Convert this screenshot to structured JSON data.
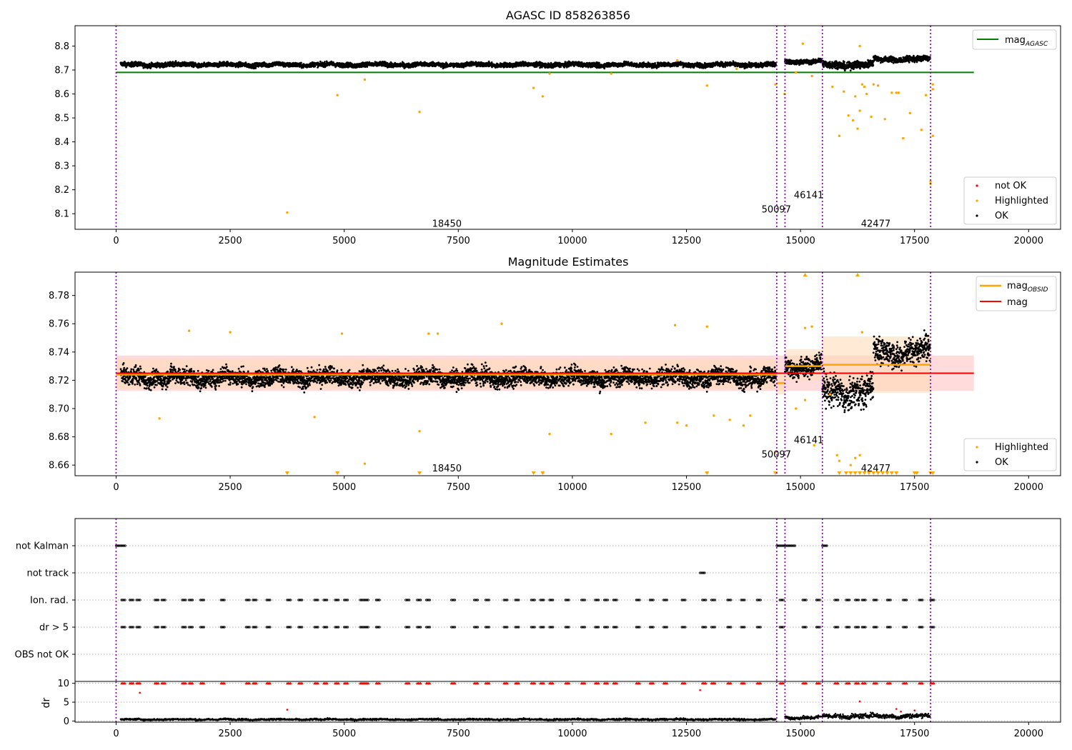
{
  "figure": {
    "title": "AGASC ID 858263856"
  },
  "colors": {
    "ok": "#000000",
    "highlighted": "#ffa500",
    "not_ok": "#ff0000",
    "agasc_line": "#008000",
    "mag_line": "#ff0000",
    "obsid_line": "#ffa500",
    "obsid_divider": "#8000a0",
    "band_mag": "#ffcccc",
    "band_obsid": "#ffd9b3"
  },
  "chart_data": [
    {
      "type": "scatter",
      "title": "AGASC ID 858263856",
      "xlabel": "",
      "ylabel": "",
      "xlim": [
        -900,
        20700
      ],
      "ylim": [
        8.035,
        8.885
      ],
      "x_ticks": [
        0,
        2500,
        5000,
        7500,
        10000,
        12500,
        15000,
        17500,
        20000
      ],
      "y_ticks": [
        8.1,
        8.2,
        8.3,
        8.4,
        8.5,
        8.6,
        8.7,
        8.8
      ],
      "grid": false,
      "legend_upper": {
        "position": "top-right",
        "entries": [
          {
            "label": "mag",
            "subscript": "AGASC",
            "color": "#008000"
          }
        ]
      },
      "legend_lower": {
        "position": "bottom-right",
        "entries": [
          {
            "label": "not OK",
            "color": "#ff0000"
          },
          {
            "label": "Highlighted",
            "color": "#ffa500"
          },
          {
            "label": "OK",
            "color": "#000000"
          }
        ]
      },
      "reference_line": {
        "name": "mag_AGASC",
        "value": 8.69,
        "x_range": [
          0,
          18800
        ]
      },
      "obsid_boundaries": [
        0,
        14480,
        14660,
        15480,
        17850
      ],
      "obsid_labels": [
        {
          "text": "18450",
          "x": 7250,
          "y": 8.06
        },
        {
          "text": "50097",
          "x": 14470,
          "y": 8.12
        },
        {
          "text": "46141",
          "x": 15180,
          "y": 8.18
        },
        {
          "text": "42477",
          "x": 16650,
          "y": 8.06
        }
      ],
      "ok_trend": [
        {
          "x_start": 100,
          "x_end": 14460,
          "level": 8.722,
          "spread": 0.012
        },
        {
          "x_start": 14660,
          "x_end": 15460,
          "level": 8.735,
          "spread": 0.012
        },
        {
          "x_start": 15480,
          "x_end": 16600,
          "level": 8.722,
          "spread": 0.02
        },
        {
          "x_start": 16600,
          "x_end": 17840,
          "level": 8.745,
          "spread": 0.015
        }
      ],
      "highlighted_points": [
        [
          3750,
          8.105
        ],
        [
          4850,
          8.595
        ],
        [
          5450,
          8.66
        ],
        [
          6650,
          8.525
        ],
        [
          9150,
          8.625
        ],
        [
          9350,
          8.59
        ],
        [
          9500,
          8.685
        ],
        [
          10850,
          8.685
        ],
        [
          12950,
          8.635
        ],
        [
          14450,
          8.64
        ],
        [
          14650,
          8.6
        ],
        [
          15050,
          8.81
        ],
        [
          15250,
          8.675
        ],
        [
          15850,
          8.425
        ],
        [
          16050,
          8.51
        ],
        [
          16150,
          8.49
        ],
        [
          16250,
          8.455
        ],
        [
          16300,
          8.53
        ],
        [
          16350,
          8.64
        ],
        [
          16450,
          8.6
        ],
        [
          16550,
          8.505
        ],
        [
          16700,
          8.635
        ],
        [
          16850,
          8.495
        ],
        [
          17000,
          8.605
        ],
        [
          17100,
          8.605
        ],
        [
          17150,
          8.605
        ],
        [
          17250,
          8.415
        ],
        [
          17400,
          8.52
        ],
        [
          17650,
          8.45
        ],
        [
          17750,
          8.595
        ],
        [
          17850,
          8.235
        ],
        [
          17850,
          8.225
        ],
        [
          17900,
          8.425
        ],
        [
          17900,
          8.62
        ],
        [
          17900,
          8.64
        ],
        [
          16300,
          8.8
        ],
        [
          16200,
          8.59
        ],
        [
          16400,
          8.63
        ],
        [
          16600,
          8.64
        ],
        [
          15950,
          8.61
        ],
        [
          15700,
          8.63
        ],
        [
          14900,
          8.69
        ],
        [
          13600,
          8.705
        ],
        [
          12300,
          8.74
        ]
      ]
    },
    {
      "type": "scatter",
      "title": "Magnitude Estimates",
      "xlabel": "",
      "ylabel": "",
      "xlim": [
        -900,
        20700
      ],
      "ylim": [
        8.6525,
        8.7965
      ],
      "x_ticks": [
        0,
        2500,
        5000,
        7500,
        10000,
        12500,
        15000,
        17500,
        20000
      ],
      "y_ticks": [
        8.66,
        8.68,
        8.7,
        8.72,
        8.74,
        8.76,
        8.78
      ],
      "grid": false,
      "legend_upper": {
        "position": "top-right",
        "entries": [
          {
            "label": "mag",
            "subscript": "OBSID",
            "color": "#ffa500"
          },
          {
            "label": "mag",
            "color": "#ff0000"
          }
        ]
      },
      "legend_lower": {
        "position": "bottom-right",
        "entries": [
          {
            "label": "Highlighted",
            "color": "#ffa500"
          },
          {
            "label": "OK",
            "color": "#000000"
          }
        ]
      },
      "mag": {
        "value": 8.725,
        "band": [
          8.7125,
          8.7375
        ],
        "x_range": [
          0,
          18800
        ]
      },
      "mag_obsid": [
        {
          "x_start": 0,
          "x_end": 14480,
          "value": 8.724,
          "band": [
            8.714,
            8.735
          ]
        },
        {
          "x_start": 14480,
          "x_end": 14660,
          "value": 8.718,
          "band": [
            8.71,
            8.726
          ]
        },
        {
          "x_start": 14660,
          "x_end": 15480,
          "value": 8.73,
          "band": [
            8.72,
            8.742
          ]
        },
        {
          "x_start": 15480,
          "x_end": 17850,
          "value": 8.731,
          "band": [
            8.711,
            8.751
          ]
        }
      ],
      "obsid_boundaries": [
        0,
        14480,
        14660,
        15480,
        17850
      ],
      "obsid_labels": [
        {
          "text": "18450",
          "x": 7250,
          "y": 8.658
        },
        {
          "text": "50097",
          "x": 14470,
          "y": 8.668
        },
        {
          "text": "46141",
          "x": 15180,
          "y": 8.678
        },
        {
          "text": "42477",
          "x": 16650,
          "y": 8.658
        }
      ],
      "ok_trend": [
        {
          "x_start": 100,
          "x_end": 14460,
          "level": 8.722,
          "spread": 0.008
        },
        {
          "x_start": 14660,
          "x_end": 15460,
          "level": 8.73,
          "spread": 0.009
        },
        {
          "x_start": 15480,
          "x_end": 16600,
          "level": 8.712,
          "spread": 0.014
        },
        {
          "x_start": 16600,
          "x_end": 17840,
          "level": 8.74,
          "spread": 0.012
        }
      ],
      "highlighted_points": [
        [
          950,
          8.693
        ],
        [
          4350,
          8.694
        ],
        [
          5450,
          8.661
        ],
        [
          6650,
          8.684
        ],
        [
          9500,
          8.682
        ],
        [
          10850,
          8.682
        ],
        [
          11600,
          8.69
        ],
        [
          12300,
          8.69
        ],
        [
          12500,
          8.688
        ],
        [
          13100,
          8.695
        ],
        [
          13450,
          8.692
        ],
        [
          13750,
          8.688
        ],
        [
          13900,
          8.695
        ],
        [
          14450,
          8.669
        ],
        [
          14900,
          8.7
        ],
        [
          15100,
          8.706
        ],
        [
          15300,
          8.674
        ],
        [
          15650,
          8.71
        ],
        [
          15800,
          8.667
        ],
        [
          15850,
          8.663
        ],
        [
          16100,
          8.66
        ],
        [
          16200,
          8.665
        ],
        [
          16300,
          8.667
        ],
        [
          8450,
          8.76
        ],
        [
          12250,
          8.759
        ],
        [
          12950,
          8.758
        ],
        [
          15100,
          8.757
        ],
        [
          15250,
          8.758
        ],
        [
          16350,
          8.754
        ],
        [
          6850,
          8.753
        ],
        [
          4950,
          8.753
        ],
        [
          2500,
          8.754
        ],
        [
          1600,
          8.755
        ],
        [
          7050,
          8.753
        ]
      ],
      "off_scale_low_x": [
        3750,
        4850,
        6650,
        9150,
        9350,
        12950,
        14450,
        15850,
        16000,
        16100,
        16200,
        16300,
        16400,
        16500,
        16600,
        16700,
        16800,
        16900,
        17000,
        17100,
        17500,
        17550,
        17850,
        17900
      ],
      "off_scale_high_x": [
        15100,
        16250
      ]
    },
    {
      "type": "scatter",
      "title": "",
      "xlabel": "",
      "ylabel": "",
      "xlim": [
        -900,
        20700
      ],
      "categories": [
        "not Kalman",
        "not track",
        "Ion. rad.",
        "dr > 5",
        "OBS not OK"
      ],
      "flags": {
        "not Kalman": [
          [
            0,
            200
          ],
          [
            14480,
            14900
          ],
          [
            15480,
            15600
          ]
        ],
        "not track": [
          [
            12800,
            12900
          ]
        ],
        "Ion. rad.": [
          120,
          300,
          450,
          850,
          1000,
          1450,
          1600,
          1850,
          2300,
          2850,
          3000,
          3300,
          3750,
          4000,
          4350,
          4550,
          4800,
          5000,
          5350,
          5450,
          5700,
          6350,
          6600,
          6800,
          7350,
          7850,
          8100,
          8500,
          8750,
          9100,
          9300,
          9500,
          9850,
          10200,
          10500,
          10700,
          10900,
          11400,
          11700,
          12000,
          12400,
          12850,
          13050,
          13400,
          13700,
          14050,
          14550,
          15050,
          15350,
          15750,
          16000,
          16200,
          16350,
          16600,
          16900,
          17250,
          17600,
          17850
        ],
        "dr > 5": [
          120,
          300,
          450,
          850,
          1000,
          1450,
          1600,
          1850,
          2300,
          2850,
          3000,
          3300,
          3750,
          4000,
          4350,
          4550,
          4800,
          5000,
          5350,
          5450,
          5700,
          6350,
          6600,
          6800,
          7350,
          7850,
          8100,
          8500,
          8750,
          9100,
          9300,
          9500,
          9850,
          10200,
          10500,
          10700,
          10900,
          11400,
          11700,
          12000,
          12400,
          12850,
          13050,
          13400,
          13700,
          14050,
          14550,
          15050,
          15350,
          15750,
          16000,
          16200,
          16350,
          16600,
          16900,
          17250,
          17600,
          17850
        ],
        "OBS not OK": []
      },
      "obsid_boundaries": [
        0,
        14480,
        14660,
        15480,
        17850
      ]
    },
    {
      "type": "scatter",
      "title": "",
      "xlabel": "",
      "ylabel": "dr",
      "xlim": [
        -900,
        20700
      ],
      "ylim": [
        -0.3,
        10.5
      ],
      "x_ticks": [
        0,
        2500,
        5000,
        7500,
        10000,
        12500,
        15000,
        17500,
        20000
      ],
      "y_ticks": [
        0,
        5,
        10
      ],
      "grid": true,
      "capped_value": 10,
      "ok_trend": [
        {
          "x_start": 100,
          "x_end": 14460,
          "level": 0.4,
          "spread": 0.3
        },
        {
          "x_start": 14660,
          "x_end": 15460,
          "level": 0.9,
          "spread": 0.6
        },
        {
          "x_start": 15480,
          "x_end": 17840,
          "level": 1.3,
          "spread": 0.8
        }
      ],
      "outlier_points": [
        [
          3750,
          3.0
        ],
        [
          12800,
          8.2
        ],
        [
          520,
          7.5
        ],
        [
          16300,
          5.2
        ],
        [
          17100,
          3.2
        ],
        [
          17500,
          2.8
        ],
        [
          17200,
          2.5
        ]
      ]
    }
  ]
}
